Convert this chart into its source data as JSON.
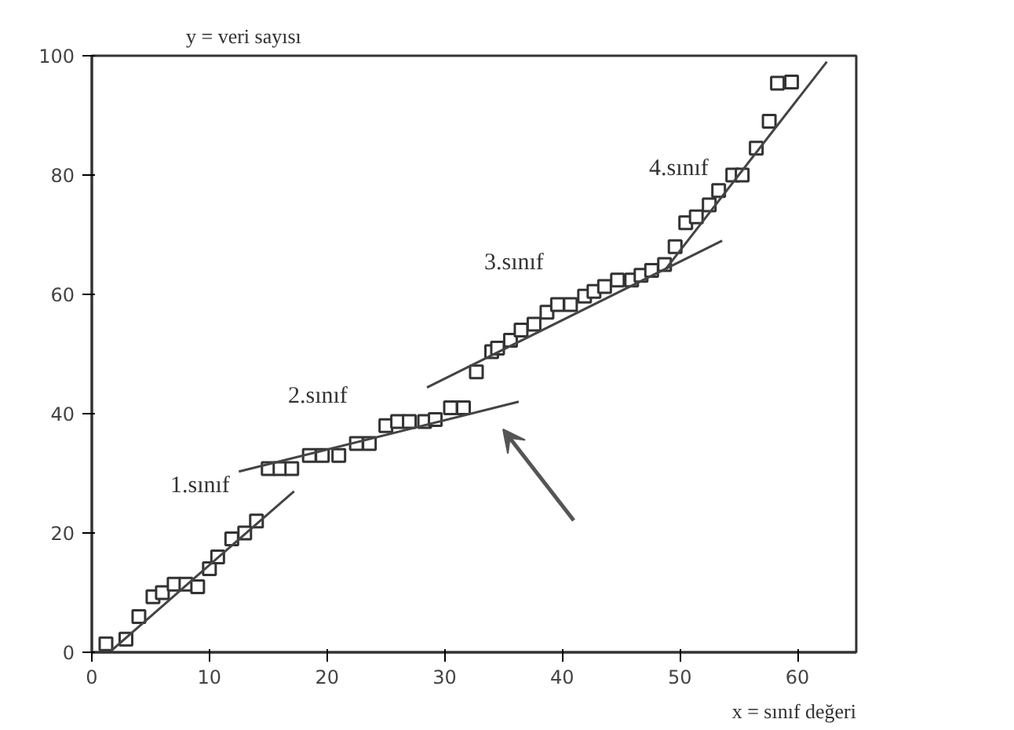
{
  "chart_data": {
    "type": "scatter",
    "xlabel": "x = sınıf değeri",
    "ylabel": "y = veri sayısı",
    "xlim": [
      0,
      65
    ],
    "ylim": [
      0,
      100
    ],
    "xticks": [
      0,
      10,
      20,
      30,
      40,
      50,
      60
    ],
    "yticks": [
      0,
      20,
      40,
      60,
      80,
      100
    ],
    "grid": false,
    "series": [
      {
        "marker": "square",
        "color": "#333333",
        "x": [
          1.2,
          2.9,
          4,
          5.2,
          6,
          7,
          8,
          9,
          10,
          10.7,
          11.9,
          13,
          14,
          15,
          16,
          17,
          18.5,
          19.6,
          21,
          22.5,
          23.6,
          25,
          26,
          27,
          28.3,
          29.2,
          30.5,
          31.6,
          32.7,
          34,
          34.5,
          35.6,
          36.5,
          37.6,
          38.7,
          39.6,
          40.7,
          41.9,
          42.7,
          43.6,
          44.7,
          45.9,
          46.7,
          47.6,
          48.7,
          49.6,
          50.5,
          51.4,
          52.5,
          53.3,
          54.5,
          55.3,
          56.5,
          57.6,
          58.3,
          59.5
        ],
        "values": [
          1.4,
          2.2,
          6,
          9.3,
          10,
          11.4,
          11.4,
          11,
          14,
          16,
          19,
          20,
          22,
          30.8,
          30.8,
          30.8,
          33,
          33,
          33,
          35,
          35,
          38,
          38.7,
          38.7,
          38.7,
          39,
          41,
          41,
          47,
          50.4,
          51,
          52.3,
          54,
          55,
          57,
          58.3,
          58.3,
          59.7,
          60.5,
          61.3,
          62.4,
          62.4,
          63.2,
          64,
          65,
          68,
          72,
          73,
          75,
          77.4,
          80,
          80,
          84.5,
          89,
          95.4,
          95.6
        ]
      },
      {
        "type": "line",
        "color": "#444444",
        "x": [
          1.5,
          17.2
        ],
        "values": [
          0,
          27
        ]
      },
      {
        "type": "line",
        "color": "#444444",
        "x": [
          12.5,
          36.3
        ],
        "values": [
          30.3,
          42
        ]
      },
      {
        "type": "line",
        "color": "#444444",
        "x": [
          28.5,
          53.6
        ],
        "values": [
          44.4,
          69
        ]
      },
      {
        "type": "line",
        "color": "#444444",
        "x": [
          48.7,
          62.5
        ],
        "values": [
          64,
          99
        ]
      }
    ],
    "annotations": [
      "1.sınıf",
      "2.sınıf",
      "3.sınıf",
      "4.sınıf"
    ]
  }
}
